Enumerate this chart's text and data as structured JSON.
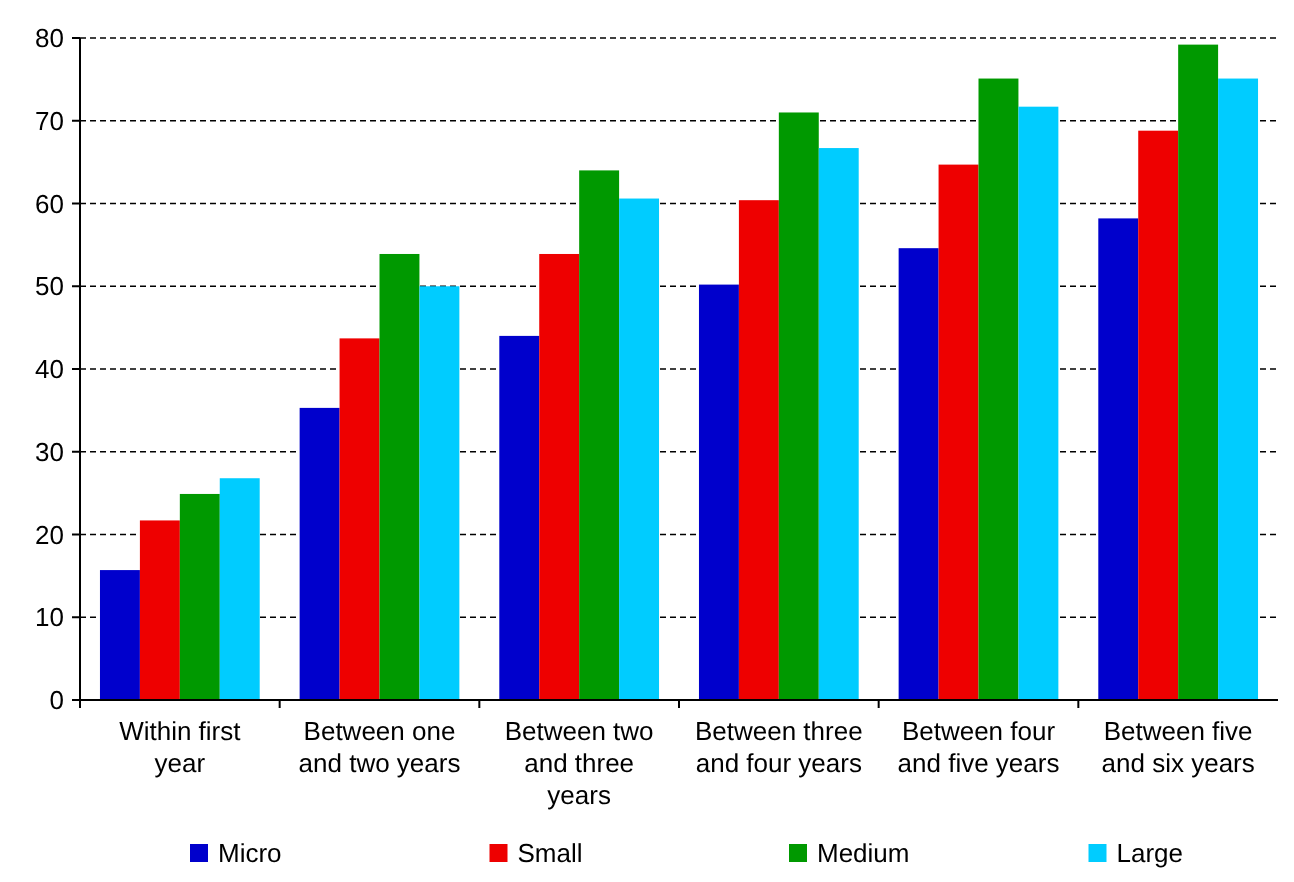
{
  "chart_data": {
    "type": "bar",
    "categories": [
      "Within first year",
      "Between one and two years",
      "Between two and three years",
      "Between three and four years",
      "Between four and five years",
      "Between five and six years"
    ],
    "series": [
      {
        "name": "Micro",
        "color": "#0000cc",
        "values": [
          15.7,
          35.3,
          44.0,
          50.2,
          54.6,
          58.2
        ]
      },
      {
        "name": "Small",
        "color": "#ee0000",
        "values": [
          21.7,
          43.7,
          53.9,
          60.4,
          64.7,
          68.8
        ]
      },
      {
        "name": "Medium",
        "color": "#009900",
        "values": [
          24.9,
          53.9,
          64.0,
          71.0,
          75.1,
          79.2
        ]
      },
      {
        "name": "Large",
        "color": "#00ccff",
        "values": [
          26.8,
          50.0,
          60.6,
          66.7,
          71.7,
          75.1
        ]
      }
    ],
    "ylim": [
      0,
      80
    ],
    "yticks": [
      0,
      10,
      20,
      30,
      40,
      50,
      60,
      70,
      80
    ],
    "grid": "y",
    "legend": "bottom"
  }
}
